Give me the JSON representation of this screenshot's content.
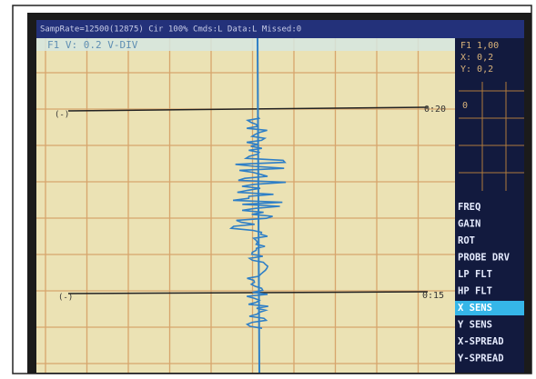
{
  "status_bar": "SampRate=12500(12875) Cir 100% Cmds:L Data:L Missed:0",
  "channel_label": "F1 V: 0.2 V-DIV",
  "markers": [
    {
      "left": "(-)",
      "right": "0:20"
    },
    {
      "left": "(-)",
      "right": "0:15"
    }
  ],
  "side_info": [
    "F1 1,00",
    "X: 0,2",
    "Y: 0,2"
  ],
  "mini_plot_label": "0",
  "menu": [
    "FREQ",
    "GAIN",
    "ROT",
    "PROBE DRV",
    "LP FLT",
    "HP FLT",
    "X SENS",
    "Y SENS",
    "X-SPREAD",
    "Y-SPREAD"
  ],
  "selected_menu": "X SENS"
}
